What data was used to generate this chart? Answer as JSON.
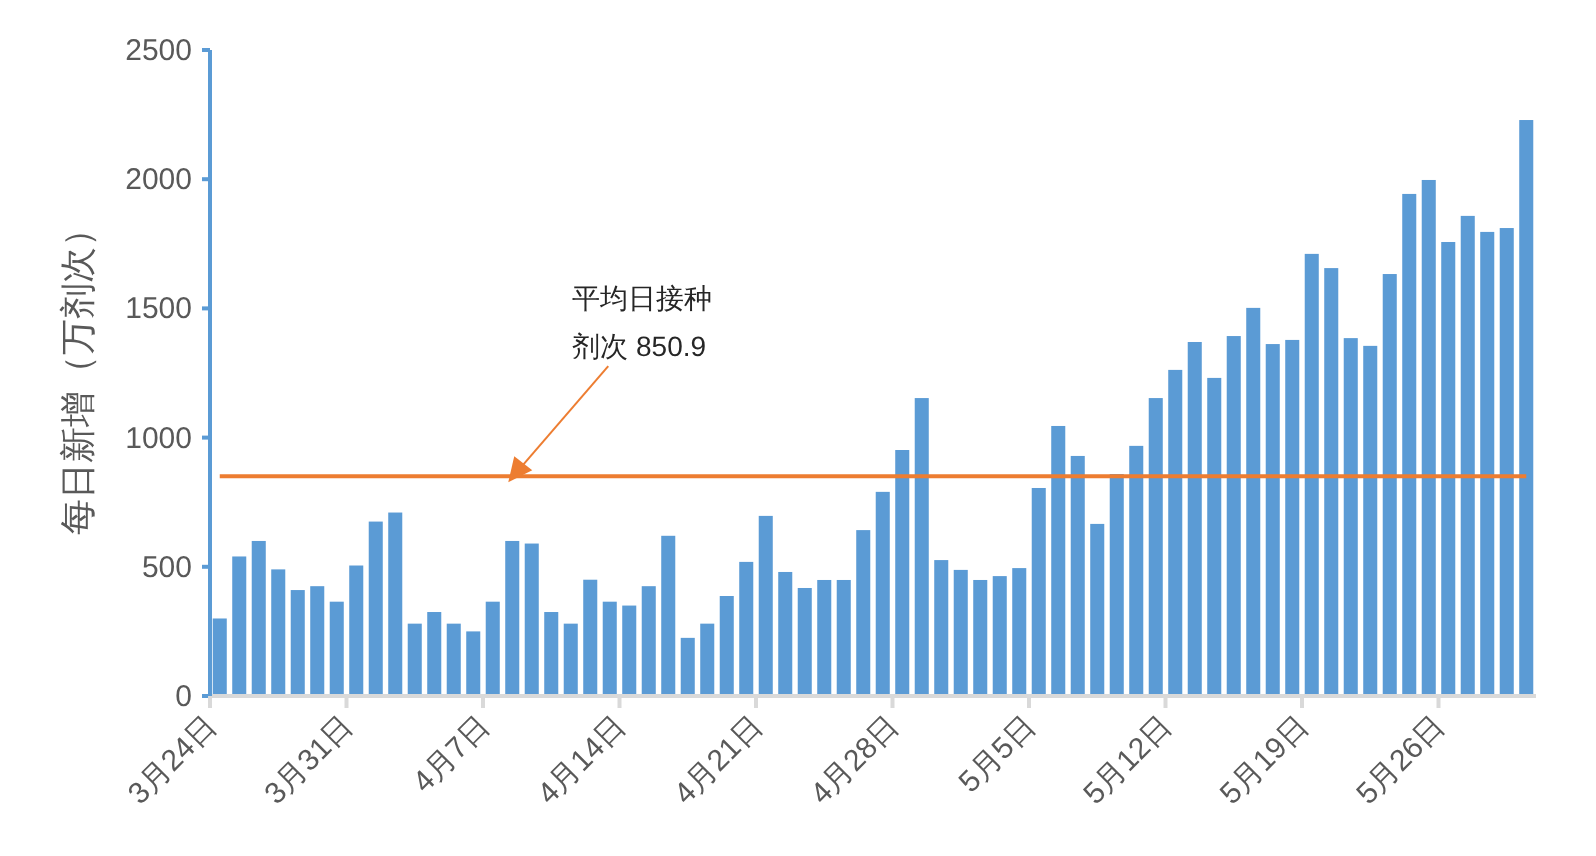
{
  "chart_data": {
    "type": "bar",
    "ylabel": "每日新增（万剂次）",
    "color": "#5b9bd5",
    "categories": [
      "3月24日",
      null,
      null,
      null,
      null,
      null,
      null,
      "3月31日",
      null,
      null,
      null,
      null,
      null,
      null,
      "4月7日",
      null,
      null,
      null,
      null,
      null,
      null,
      "4月14日",
      null,
      null,
      null,
      null,
      null,
      null,
      "4月21日",
      null,
      null,
      null,
      null,
      null,
      null,
      "4月28日",
      null,
      null,
      null,
      null,
      null,
      null,
      "5月5日",
      null,
      null,
      null,
      null,
      null,
      null,
      "5月12日",
      null,
      null,
      null,
      null,
      null,
      null,
      "5月19日",
      null,
      null,
      null,
      null,
      null,
      null,
      "5月26日",
      null,
      null,
      null,
      null
    ],
    "values": [
      300,
      540,
      600,
      490,
      410,
      425,
      365,
      505,
      675,
      710,
      280,
      325,
      280,
      250,
      365,
      600,
      590,
      325,
      280,
      450,
      365,
      350,
      425,
      620,
      225,
      280,
      387,
      519,
      697,
      480,
      418,
      449,
      449,
      642,
      790,
      952,
      1153,
      526,
      488,
      449,
      464,
      495,
      805,
      1045,
      929,
      666,
      859,
      968,
      1153,
      1262,
      1370,
      1231,
      1393,
      1502,
      1362,
      1378,
      1711,
      1656,
      1385,
      1355,
      1633,
      1943,
      1997,
      1757,
      1858,
      1796,
      1811,
      2229
    ],
    "ylim": [
      0,
      2500
    ],
    "yticks": [
      0,
      500,
      1000,
      1500,
      2000,
      2500
    ],
    "grid": false,
    "ref_lines": [
      {
        "axis": "y",
        "value": 850.9,
        "label": "平均日接种剂次 850.9",
        "color": "#ed7d31"
      }
    ]
  }
}
